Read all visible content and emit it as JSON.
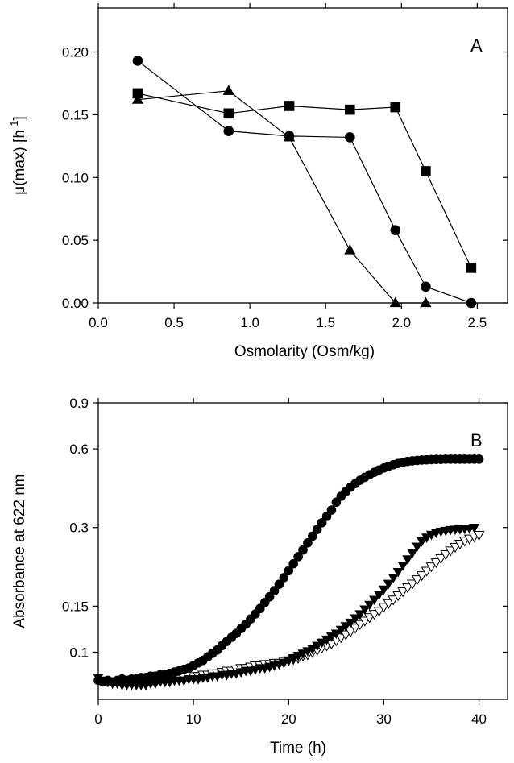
{
  "chart_data": [
    {
      "type": "line",
      "panel_label": "A",
      "xlabel": "Osmolarity (Osm/kg)",
      "ylabel": "μ(max) [h",
      "ylabel_sup": "-1",
      "ylabel_end": "]",
      "xlim": [
        0.0,
        2.7
      ],
      "ylim": [
        0.0,
        0.235
      ],
      "xticks": [
        0.0,
        0.5,
        1.0,
        1.5,
        2.0,
        2.5
      ],
      "xtick_labels": [
        "0.0",
        "0.5",
        "1.0",
        "1.5",
        "2.0",
        "2.5"
      ],
      "yticks": [
        0.0,
        0.05,
        0.1,
        0.15,
        0.2
      ],
      "ytick_labels": [
        "0.00",
        "0.05",
        "0.10",
        "0.15",
        "0.20"
      ],
      "grid": false,
      "series": [
        {
          "marker": "circle",
          "x": [
            0.26,
            0.86,
            1.26,
            1.66,
            1.96,
            2.16,
            2.46
          ],
          "y": [
            0.193,
            0.137,
            0.133,
            0.132,
            0.058,
            0.013,
            0.0
          ]
        },
        {
          "marker": "square",
          "x": [
            0.26,
            0.86,
            1.26,
            1.66,
            1.96,
            2.16,
            2.46
          ],
          "y": [
            0.167,
            0.151,
            0.157,
            0.154,
            0.156,
            0.105,
            0.028
          ]
        },
        {
          "marker": "triangle-up",
          "x": [
            0.26,
            0.86,
            1.26,
            1.66,
            1.96,
            2.16
          ],
          "y": [
            0.162,
            0.169,
            0.132,
            0.042,
            0.0,
            0.0
          ]
        }
      ]
    },
    {
      "type": "scatter",
      "panel_label": "B",
      "xlabel": "Time (h)",
      "ylabel": "Absorbance at 622 nm",
      "y_scale": "log",
      "xlim": [
        0,
        43
      ],
      "ylim": [
        0.066,
        0.9
      ],
      "xticks": [
        0,
        10,
        20,
        30,
        40
      ],
      "xtick_labels": [
        "0",
        "10",
        "20",
        "30",
        "40"
      ],
      "yticks": [
        0.1,
        0.15,
        0.3,
        0.6,
        0.9
      ],
      "ytick_labels": [
        "0.1",
        "0.15",
        "0.3",
        "0.6",
        "0.9"
      ],
      "grid": false,
      "series": [
        {
          "marker": "circle",
          "x": [
            0,
            0.5,
            1,
            1.5,
            2,
            2.5,
            3,
            3.5,
            4,
            4.5,
            5,
            5.5,
            6,
            6.5,
            7,
            7.5,
            8,
            8.5,
            9,
            9.5,
            10,
            10.5,
            11,
            11.5,
            12,
            12.5,
            13,
            13.5,
            14,
            14.5,
            15,
            15.5,
            16,
            16.5,
            17,
            17.5,
            18,
            18.5,
            19,
            19.5,
            20,
            20.5,
            21,
            21.5,
            22,
            22.5,
            23,
            23.5,
            24,
            24.5,
            25,
            25.5,
            26,
            26.5,
            27,
            27.5,
            28,
            28.5,
            29,
            29.5,
            30,
            30.5,
            31,
            31.5,
            32,
            32.5,
            33,
            33.5,
            34,
            34.5,
            35,
            35.5,
            36,
            36.5,
            37,
            37.5,
            38,
            38.5,
            39,
            39.5,
            40
          ],
          "y": [
            0.078,
            0.077,
            0.078,
            0.077,
            0.078,
            0.079,
            0.078,
            0.079,
            0.079,
            0.08,
            0.08,
            0.081,
            0.081,
            0.082,
            0.082,
            0.083,
            0.084,
            0.085,
            0.086,
            0.087,
            0.089,
            0.091,
            0.093,
            0.096,
            0.099,
            0.102,
            0.106,
            0.11,
            0.114,
            0.118,
            0.123,
            0.128,
            0.134,
            0.14,
            0.147,
            0.155,
            0.163,
            0.172,
            0.182,
            0.193,
            0.205,
            0.218,
            0.232,
            0.246,
            0.262,
            0.278,
            0.295,
            0.313,
            0.331,
            0.35,
            0.375,
            0.395,
            0.412,
            0.428,
            0.442,
            0.455,
            0.467,
            0.478,
            0.488,
            0.498,
            0.507,
            0.515,
            0.522,
            0.528,
            0.533,
            0.537,
            0.54,
            0.542,
            0.544,
            0.545,
            0.546,
            0.547,
            0.547,
            0.548,
            0.548,
            0.548,
            0.548,
            0.548,
            0.548,
            0.548,
            0.548
          ]
        },
        {
          "marker": "triangle-down",
          "fill": "filled",
          "x": [
            0,
            0.5,
            1,
            1.5,
            2,
            2.5,
            3,
            3.5,
            4,
            4.5,
            5,
            5.5,
            6,
            6.5,
            7,
            7.5,
            8,
            8.5,
            9,
            9.5,
            10,
            10.5,
            11,
            11.5,
            12,
            12.5,
            13,
            13.5,
            14,
            14.5,
            15,
            15.5,
            16,
            16.5,
            17,
            17.5,
            18,
            18.5,
            19,
            19.5,
            20,
            20.5,
            21,
            21.5,
            22,
            22.5,
            23,
            23.5,
            24,
            24.5,
            25,
            25.5,
            26,
            26.5,
            27,
            27.5,
            28,
            28.5,
            29,
            29.5,
            30,
            30.5,
            31,
            31.5,
            32,
            32.5,
            33,
            33.5,
            34,
            34.5,
            35,
            35.5,
            36,
            36.5,
            37,
            37.5,
            38,
            38.5,
            39,
            39.5
          ],
          "y": [
            0.08,
            0.078,
            0.077,
            0.076,
            0.076,
            0.075,
            0.075,
            0.075,
            0.075,
            0.075,
            0.075,
            0.076,
            0.076,
            0.077,
            0.077,
            0.077,
            0.078,
            0.078,
            0.078,
            0.079,
            0.079,
            0.079,
            0.08,
            0.08,
            0.081,
            0.081,
            0.082,
            0.082,
            0.083,
            0.083,
            0.084,
            0.085,
            0.085,
            0.086,
            0.087,
            0.087,
            0.088,
            0.089,
            0.09,
            0.091,
            0.093,
            0.095,
            0.097,
            0.099,
            0.101,
            0.103,
            0.106,
            0.109,
            0.112,
            0.115,
            0.118,
            0.122,
            0.126,
            0.13,
            0.135,
            0.14,
            0.146,
            0.152,
            0.159,
            0.166,
            0.174,
            0.183,
            0.193,
            0.203,
            0.215,
            0.227,
            0.24,
            0.254,
            0.266,
            0.275,
            0.282,
            0.287,
            0.29,
            0.292,
            0.294,
            0.295,
            0.296,
            0.297,
            0.298,
            0.3
          ]
        },
        {
          "marker": "triangle-down",
          "fill": "open",
          "x": [
            7,
            7.5,
            8,
            8.5,
            9,
            9.5,
            10,
            10.5,
            11,
            11.5,
            12,
            12.5,
            13,
            13.5,
            14,
            14.5,
            15,
            15.5,
            16,
            16.5,
            17,
            17.5,
            18,
            18.5,
            19,
            19.5,
            20,
            20.5,
            21,
            21.5,
            22,
            22.5,
            23,
            23.5,
            24,
            24.5,
            25,
            25.5,
            26,
            26.5,
            27,
            27.5,
            28,
            28.5,
            29,
            29.5,
            30,
            30.5,
            31,
            31.5,
            32,
            32.5,
            33,
            33.5,
            34,
            34.5,
            35,
            35.5,
            36,
            36.5,
            37,
            37.5,
            38,
            38.5,
            39,
            39.5,
            40
          ],
          "y": [
            0.078,
            0.078,
            0.079,
            0.079,
            0.08,
            0.08,
            0.081,
            0.081,
            0.082,
            0.082,
            0.083,
            0.083,
            0.084,
            0.085,
            0.085,
            0.086,
            0.087,
            0.087,
            0.088,
            0.089,
            0.089,
            0.09,
            0.09,
            0.091,
            0.091,
            0.092,
            0.093,
            0.094,
            0.095,
            0.097,
            0.098,
            0.1,
            0.102,
            0.104,
            0.106,
            0.108,
            0.111,
            0.114,
            0.117,
            0.12,
            0.124,
            0.128,
            0.132,
            0.136,
            0.14,
            0.144,
            0.149,
            0.154,
            0.159,
            0.165,
            0.171,
            0.177,
            0.183,
            0.19,
            0.197,
            0.205,
            0.213,
            0.221,
            0.229,
            0.237,
            0.245,
            0.253,
            0.26,
            0.267,
            0.272,
            0.277,
            0.281
          ]
        }
      ]
    }
  ]
}
